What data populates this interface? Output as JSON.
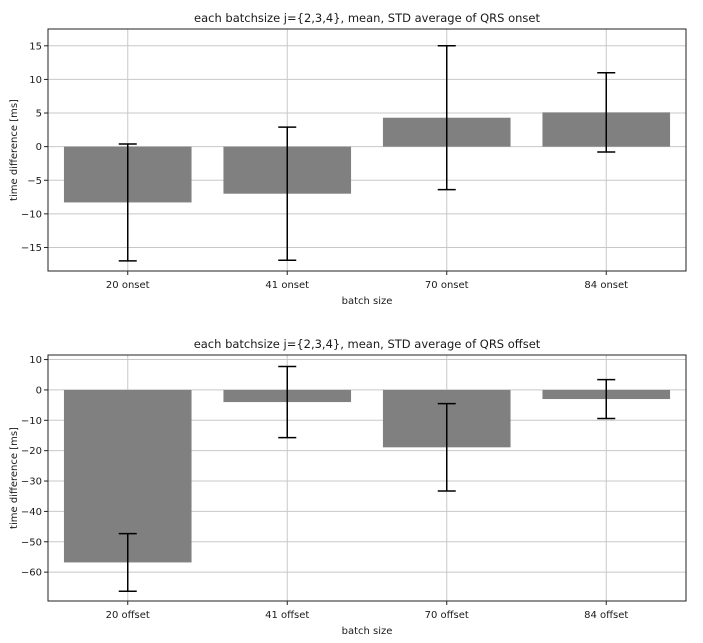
{
  "chart_data": [
    {
      "type": "bar",
      "title": "each batchsize j={2,3,4}, mean, STD average of QRS onset",
      "xlabel": "batch size",
      "ylabel": "time difference [ms]",
      "categories": [
        "20 onset",
        "41 onset",
        "70 onset",
        "84 onset"
      ],
      "values": [
        -8.3,
        -7.0,
        4.3,
        5.1
      ],
      "errors": [
        8.7,
        9.9,
        10.7,
        5.9
      ],
      "ylim": [
        -18.5,
        17.5
      ],
      "yticks": [
        -15,
        -10,
        -5,
        0,
        5,
        10,
        15
      ],
      "ytick_labels": [
        "−15",
        "−10",
        "−5",
        "0",
        "5",
        "10",
        "15"
      ],
      "grid": true,
      "bar_color": "#808080",
      "errorbar_color": "#000000"
    },
    {
      "type": "bar",
      "title": "each batchsize j={2,3,4}, mean, STD average of QRS offset",
      "xlabel": "batch size",
      "ylabel": "time difference [ms]",
      "categories": [
        "20 offset",
        "41 offset",
        "70 offset",
        "84 offset"
      ],
      "values": [
        -56.8,
        -4.0,
        -18.9,
        -3.0
      ],
      "errors": [
        9.5,
        11.7,
        14.4,
        6.4
      ],
      "ylim": [
        -69.5,
        11.5
      ],
      "yticks": [
        -60,
        -50,
        -40,
        -30,
        -20,
        -10,
        0,
        10
      ],
      "ytick_labels": [
        "−60",
        "−50",
        "−40",
        "−30",
        "−20",
        "−10",
        "0",
        "10"
      ],
      "grid": true,
      "bar_color": "#808080",
      "errorbar_color": "#000000"
    }
  ]
}
